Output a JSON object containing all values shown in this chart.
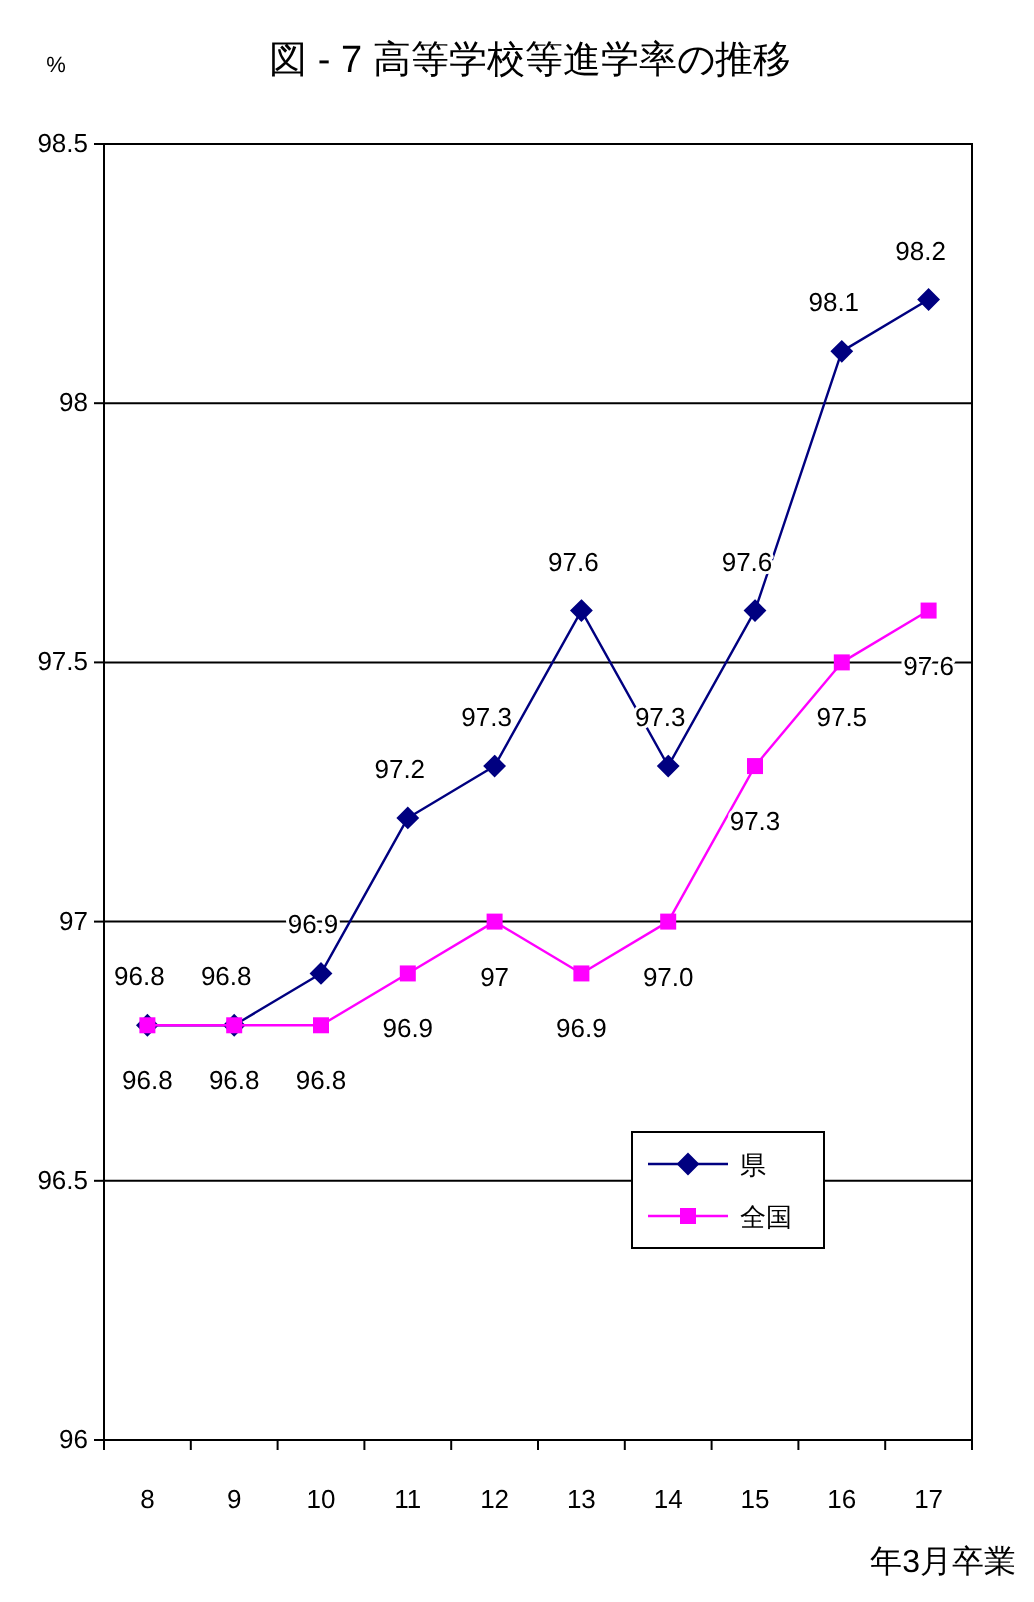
{
  "chart_data": {
    "type": "line",
    "title": "図 - 7  高等学校等進学率の推移",
    "ylabel": "%",
    "xlabel": "年3月卒業",
    "categories": [
      "8",
      "9",
      "10",
      "11",
      "12",
      "13",
      "14",
      "15",
      "16",
      "17"
    ],
    "ylim": [
      96,
      98.5
    ],
    "yticks": [
      96,
      96.5,
      97,
      97.5,
      98,
      98.5
    ],
    "grid": "y",
    "legend": "bottom right",
    "series": [
      {
        "name": "県",
        "color": "#000080",
        "marker": "diamond",
        "values": [
          96.8,
          96.8,
          96.9,
          97.2,
          97.3,
          97.6,
          97.3,
          97.6,
          98.1,
          98.2
        ],
        "value_labels": [
          "96.8",
          "96.8",
          "96.9",
          "97.2",
          "97.3",
          "97.6",
          "97.3",
          "97.6",
          "98.1",
          "98.2"
        ]
      },
      {
        "name": "全国",
        "color": "#ff00ff",
        "marker": "square",
        "values": [
          96.8,
          96.8,
          96.8,
          96.9,
          97.0,
          96.9,
          97.0,
          97.3,
          97.5,
          97.6
        ],
        "value_labels": [
          "96.8",
          "96.8",
          "96.8",
          "96.9",
          "97",
          "96.9",
          "97.0",
          "97.3",
          "97.5",
          "97.6"
        ]
      }
    ]
  }
}
